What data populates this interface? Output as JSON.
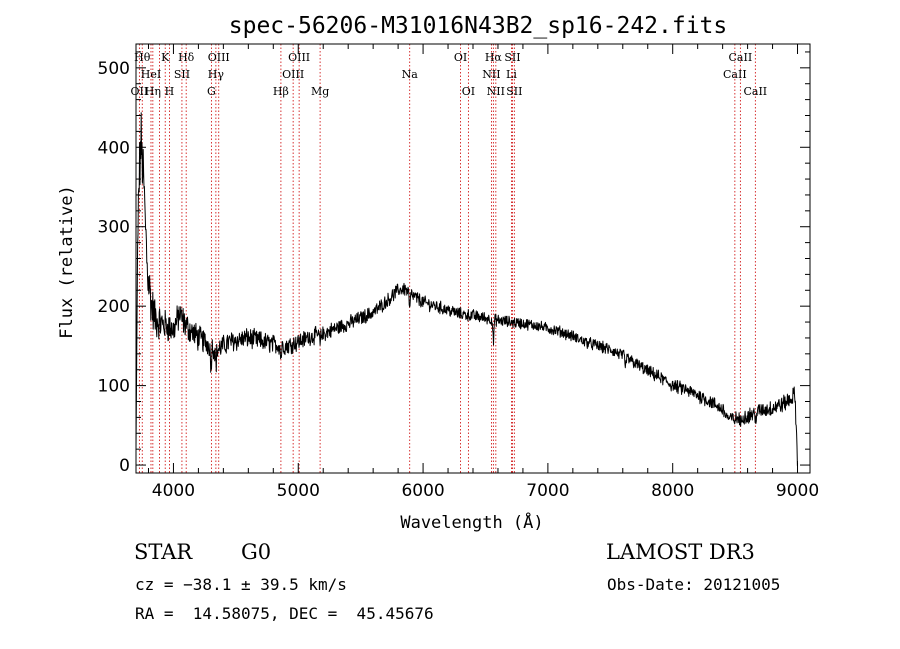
{
  "chart_data": {
    "type": "line",
    "title": "spec-56206-M31016N43B2_sp16-242.fits",
    "xlabel": "Wavelength (Å)",
    "ylabel": "Flux (relative)",
    "xlim": [
      3700,
      9100
    ],
    "ylim": [
      -10,
      530
    ],
    "xticks": [
      4000,
      5000,
      6000,
      7000,
      8000,
      9000
    ],
    "yticks": [
      0,
      100,
      200,
      300,
      400,
      500
    ],
    "grid": false,
    "spectrum_anchors": [
      [
        3700,
        20
      ],
      [
        3720,
        340
      ],
      [
        3740,
        410
      ],
      [
        3760,
        360
      ],
      [
        3790,
        250
      ],
      [
        3820,
        205
      ],
      [
        3850,
        185
      ],
      [
        3900,
        178
      ],
      [
        3950,
        175
      ],
      [
        4000,
        170
      ],
      [
        4050,
        190
      ],
      [
        4100,
        175
      ],
      [
        4200,
        160
      ],
      [
        4300,
        150
      ],
      [
        4350,
        145
      ],
      [
        4450,
        155
      ],
      [
        4600,
        160
      ],
      [
        4800,
        152
      ],
      [
        4900,
        150
      ],
      [
        5000,
        155
      ],
      [
        5100,
        162
      ],
      [
        5200,
        165
      ],
      [
        5300,
        172
      ],
      [
        5400,
        178
      ],
      [
        5500,
        185
      ],
      [
        5600,
        192
      ],
      [
        5700,
        205
      ],
      [
        5800,
        220
      ],
      [
        5850,
        222
      ],
      [
        5900,
        215
      ],
      [
        6000,
        205
      ],
      [
        6100,
        200
      ],
      [
        6200,
        195
      ],
      [
        6300,
        190
      ],
      [
        6400,
        188
      ],
      [
        6500,
        185
      ],
      [
        6600,
        182
      ],
      [
        6700,
        180
      ],
      [
        6800,
        178
      ],
      [
        6900,
        176
      ],
      [
        7000,
        172
      ],
      [
        7100,
        168
      ],
      [
        7200,
        162
      ],
      [
        7300,
        155
      ],
      [
        7400,
        150
      ],
      [
        7500,
        145
      ],
      [
        7600,
        138
      ],
      [
        7700,
        128
      ],
      [
        7800,
        118
      ],
      [
        7900,
        110
      ],
      [
        8000,
        100
      ],
      [
        8100,
        95
      ],
      [
        8200,
        88
      ],
      [
        8300,
        80
      ],
      [
        8400,
        70
      ],
      [
        8450,
        58
      ],
      [
        8500,
        58
      ],
      [
        8600,
        62
      ],
      [
        8700,
        68
      ],
      [
        8800,
        72
      ],
      [
        8900,
        78
      ],
      [
        8980,
        88
      ],
      [
        9000,
        5
      ]
    ],
    "noise_levels": [
      [
        3700,
        40
      ],
      [
        3900,
        18
      ],
      [
        4400,
        12
      ],
      [
        5500,
        8
      ],
      [
        7000,
        6
      ],
      [
        8500,
        8
      ],
      [
        9000,
        10
      ]
    ],
    "absorption_features": [
      {
        "x": 4300,
        "depth": 25
      },
      {
        "x": 4340,
        "depth": 20
      },
      {
        "x": 4861,
        "depth": 15
      },
      {
        "x": 5175,
        "depth": 12
      },
      {
        "x": 5893,
        "depth": 20
      },
      {
        "x": 6563,
        "depth": 28
      },
      {
        "x": 7620,
        "depth": 15
      },
      {
        "x": 8542,
        "depth": 10
      },
      {
        "x": 8662,
        "depth": 10
      }
    ],
    "emission_lines": [
      {
        "wavelength": 3727,
        "label": "OII",
        "row": 3
      },
      {
        "wavelength": 3750,
        "label": "Hθ",
        "row": 1
      },
      {
        "wavelength": 3820,
        "label": "HeI",
        "row": 2
      },
      {
        "wavelength": 3835,
        "label": "Hη",
        "row": 3
      },
      {
        "wavelength": 3889,
        "label": "",
        "row": 0
      },
      {
        "wavelength": 3934,
        "label": "K",
        "row": 1
      },
      {
        "wavelength": 3968,
        "label": "H",
        "row": 3
      },
      {
        "wavelength": 4068,
        "label": "SII",
        "row": 2
      },
      {
        "wavelength": 4102,
        "label": "Hδ",
        "row": 1
      },
      {
        "wavelength": 4304,
        "label": "G",
        "row": 3
      },
      {
        "wavelength": 4340,
        "label": "Hγ",
        "row": 2
      },
      {
        "wavelength": 4363,
        "label": "OIII",
        "row": 1
      },
      {
        "wavelength": 4861,
        "label": "Hβ",
        "row": 3
      },
      {
        "wavelength": 4959,
        "label": "OIII",
        "row": 2
      },
      {
        "wavelength": 5007,
        "label": "OIII",
        "row": 1
      },
      {
        "wavelength": 5175,
        "label": "Mg",
        "row": 3
      },
      {
        "wavelength": 5893,
        "label": "Na",
        "row": 2
      },
      {
        "wavelength": 6300,
        "label": "OI",
        "row": 1
      },
      {
        "wavelength": 6363,
        "label": "OI",
        "row": 3
      },
      {
        "wavelength": 6548,
        "label": "NII",
        "row": 2
      },
      {
        "wavelength": 6563,
        "label": "Hα",
        "row": 1
      },
      {
        "wavelength": 6583,
        "label": "NII",
        "row": 3
      },
      {
        "wavelength": 6708,
        "label": "Li",
        "row": 2
      },
      {
        "wavelength": 6716,
        "label": "SII",
        "row": 1
      },
      {
        "wavelength": 6731,
        "label": "SII",
        "row": 3
      },
      {
        "wavelength": 8498,
        "label": "CaII",
        "row": 2
      },
      {
        "wavelength": 8542,
        "label": "CaII",
        "row": 1
      },
      {
        "wavelength": 8662,
        "label": "CaII",
        "row": 3
      }
    ],
    "line_color": "#000000",
    "marker_color": "#cc0000"
  },
  "info": {
    "class": "STAR",
    "subclass": "G0",
    "survey": "LAMOST DR3",
    "redshift": "cz = −38.1 ± 39.5 km/s",
    "obs_date": "Obs-Date: 20121005",
    "coords": "RA =  14.58075, DEC =  45.45676"
  }
}
